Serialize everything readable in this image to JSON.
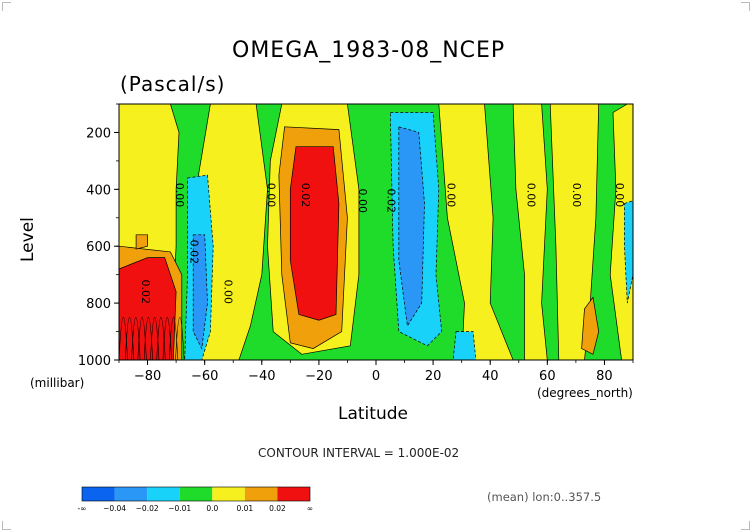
{
  "chart_data": {
    "type": "heatmap",
    "title": "OMEGA_1983-08_NCEP",
    "units": "(Pascal/s)",
    "ylabel": "Level",
    "yunits": "(millibar)",
    "xlabel": "Latitude",
    "xunits": "(degrees_north)",
    "xlim": [
      -90,
      90
    ],
    "ylim": [
      1000,
      100
    ],
    "y_reversed": true,
    "x_ticks": [
      -80,
      -60,
      -40,
      -20,
      0,
      20,
      40,
      60,
      80
    ],
    "x_tick_labels": [
      "−80",
      "−60",
      "−40",
      "−20",
      "0",
      "20",
      "40",
      "60",
      "80"
    ],
    "y_ticks": [
      200,
      400,
      600,
      800,
      1000
    ],
    "y_tick_labels": [
      "200",
      "400",
      "600",
      "800",
      "1000"
    ],
    "contour_interval_text": "CONTOUR INTERVAL = 1.000E-02",
    "mean_text": "(mean) lon:0..357.5",
    "colorbar": {
      "labels": [
        "-∞",
        "−0.04",
        "−0.02",
        "−0.01",
        "0.0",
        "0.01",
        "0.02",
        "∞"
      ],
      "colors": [
        "#0a64f0",
        "#2a96f5",
        "#18d2fa",
        "#1fdc2a",
        "#f5f01e",
        "#f0a00a",
        "#f01010"
      ]
    },
    "contour_labels": [
      {
        "text": "0.00",
        "lat": -70,
        "lev": 420
      },
      {
        "text": "0.00",
        "lat": -38,
        "lev": 420
      },
      {
        "text": "0.02",
        "lat": -26,
        "lev": 420
      },
      {
        "text": "0.00",
        "lat": -6,
        "lev": 440
      },
      {
        "text": "0.02",
        "lat": 4,
        "lev": 440
      },
      {
        "text": "0.00",
        "lat": 25,
        "lev": 420
      },
      {
        "text": "0.00",
        "lat": 53,
        "lev": 420
      },
      {
        "text": "0.00",
        "lat": 69,
        "lev": 420
      },
      {
        "text": "0.00",
        "lat": 84,
        "lev": 420
      },
      {
        "text": "0.02",
        "lat": -65,
        "lev": 620
      },
      {
        "text": "0.00",
        "lat": -53,
        "lev": 760
      },
      {
        "text": "0.02",
        "lat": -82,
        "lev": 760
      }
    ],
    "regions": [
      {
        "name": "base-green",
        "cat": 3,
        "pts": [
          [
            -90,
            1000
          ],
          [
            90,
            1000
          ],
          [
            90,
            100
          ],
          [
            -90,
            100
          ]
        ]
      },
      {
        "name": "yellow-south",
        "cat": 4,
        "pts": [
          [
            -90,
            100
          ],
          [
            -72,
            100
          ],
          [
            -69,
            200
          ],
          [
            -70,
            400
          ],
          [
            -70,
            600
          ],
          [
            -71,
            800
          ],
          [
            -69,
            1000
          ],
          [
            -90,
            1000
          ]
        ]
      },
      {
        "name": "yellow-south-mid",
        "cat": 4,
        "pts": [
          [
            -58,
            100
          ],
          [
            -42,
            100
          ],
          [
            -38,
            400
          ],
          [
            -40,
            700
          ],
          [
            -44,
            880
          ],
          [
            -48,
            1000
          ],
          [
            -64,
            1000
          ],
          [
            -60,
            700
          ],
          [
            -63,
            400
          ]
        ]
      },
      {
        "name": "yellow-midlat-south",
        "cat": 4,
        "pts": [
          [
            -33,
            100
          ],
          [
            -10,
            100
          ],
          [
            -6,
            400
          ],
          [
            -6,
            700
          ],
          [
            -9,
            950
          ],
          [
            -26,
            980
          ],
          [
            -36,
            900
          ],
          [
            -38,
            600
          ],
          [
            -37,
            300
          ]
        ]
      },
      {
        "name": "orange-south",
        "cat": 5,
        "pts": [
          [
            -32,
            180
          ],
          [
            -13,
            190
          ],
          [
            -10,
            500
          ],
          [
            -12,
            900
          ],
          [
            -22,
            960
          ],
          [
            -30,
            940
          ],
          [
            -33,
            700
          ],
          [
            -34,
            350
          ]
        ]
      },
      {
        "name": "red-south",
        "cat": 6,
        "pts": [
          [
            -28,
            250
          ],
          [
            -15,
            250
          ],
          [
            -13,
            450
          ],
          [
            -14,
            840
          ],
          [
            -20,
            860
          ],
          [
            -27,
            840
          ],
          [
            -30,
            650
          ],
          [
            -30,
            400
          ]
        ]
      },
      {
        "name": "yellow-north-1",
        "cat": 4,
        "pts": [
          [
            22,
            100
          ],
          [
            38,
            100
          ],
          [
            41,
            500
          ],
          [
            40,
            800
          ],
          [
            48,
            1000
          ],
          [
            30,
            1000
          ],
          [
            31,
            800
          ],
          [
            25,
            500
          ]
        ]
      },
      {
        "name": "yellow-north-2",
        "cat": 4,
        "pts": [
          [
            48,
            100
          ],
          [
            58,
            100
          ],
          [
            60,
            400
          ],
          [
            58,
            800
          ],
          [
            60,
            1000
          ],
          [
            52,
            1000
          ],
          [
            52,
            700
          ],
          [
            49,
            400
          ]
        ]
      },
      {
        "name": "yellow-north-3",
        "cat": 4,
        "pts": [
          [
            61,
            100
          ],
          [
            78,
            100
          ],
          [
            77,
            500
          ],
          [
            75,
            800
          ],
          [
            73,
            1000
          ],
          [
            64,
            1000
          ],
          [
            63,
            600
          ]
        ]
      },
      {
        "name": "yellow-north-4",
        "cat": 4,
        "pts": [
          [
            83,
            130
          ],
          [
            88,
            100
          ],
          [
            90,
            100
          ],
          [
            90,
            1000
          ],
          [
            86,
            1000
          ],
          [
            82,
            700
          ],
          [
            84,
            400
          ]
        ]
      },
      {
        "name": "orange-north",
        "cat": 5,
        "pts": [
          [
            73,
            820
          ],
          [
            76,
            780
          ],
          [
            78,
            900
          ],
          [
            76,
            980
          ],
          [
            72,
            960
          ]
        ]
      },
      {
        "name": "cyan-south",
        "cat": 2,
        "pts": [
          [
            -66,
            360
          ],
          [
            -59,
            350
          ],
          [
            -57,
            600
          ],
          [
            -58,
            900
          ],
          [
            -61,
            1000
          ],
          [
            -67,
            1000
          ],
          [
            -66,
            700
          ]
        ]
      },
      {
        "name": "blue-south",
        "cat": 1,
        "pts": [
          [
            -64,
            560
          ],
          [
            -60,
            560
          ],
          [
            -59,
            800
          ],
          [
            -61,
            960
          ],
          [
            -64,
            900
          ]
        ]
      },
      {
        "name": "cyan-north",
        "cat": 2,
        "pts": [
          [
            5,
            130
          ],
          [
            20,
            130
          ],
          [
            22,
            400
          ],
          [
            21,
            700
          ],
          [
            23,
            900
          ],
          [
            18,
            950
          ],
          [
            8,
            900
          ],
          [
            6,
            600
          ]
        ]
      },
      {
        "name": "blue-north",
        "cat": 1,
        "pts": [
          [
            8,
            180
          ],
          [
            15,
            200
          ],
          [
            17,
            450
          ],
          [
            16,
            800
          ],
          [
            11,
            880
          ],
          [
            8,
            650
          ]
        ]
      },
      {
        "name": "cyan-north-low",
        "cat": 2,
        "pts": [
          [
            28,
            900
          ],
          [
            34,
            900
          ],
          [
            35,
            1000
          ],
          [
            27,
            1000
          ]
        ]
      },
      {
        "name": "cyan-far-north",
        "cat": 2,
        "pts": [
          [
            87,
            450
          ],
          [
            90,
            440
          ],
          [
            90,
            700
          ],
          [
            88,
            800
          ],
          [
            87,
            600
          ]
        ]
      },
      {
        "name": "orange-south-pole",
        "cat": 5,
        "pts": [
          [
            -90,
            600
          ],
          [
            -72,
            620
          ],
          [
            -68,
            700
          ],
          [
            -68,
            1000
          ],
          [
            -90,
            1000
          ]
        ]
      },
      {
        "name": "red-south-pole",
        "cat": 6,
        "pts": [
          [
            -90,
            680
          ],
          [
            -80,
            640
          ],
          [
            -74,
            640
          ],
          [
            -70,
            760
          ],
          [
            -71,
            1000
          ],
          [
            -90,
            1000
          ]
        ]
      },
      {
        "name": "orange-small",
        "cat": 5,
        "pts": [
          [
            -84,
            560
          ],
          [
            -80,
            560
          ],
          [
            -80,
            600
          ],
          [
            -84,
            610
          ]
        ]
      }
    ]
  }
}
